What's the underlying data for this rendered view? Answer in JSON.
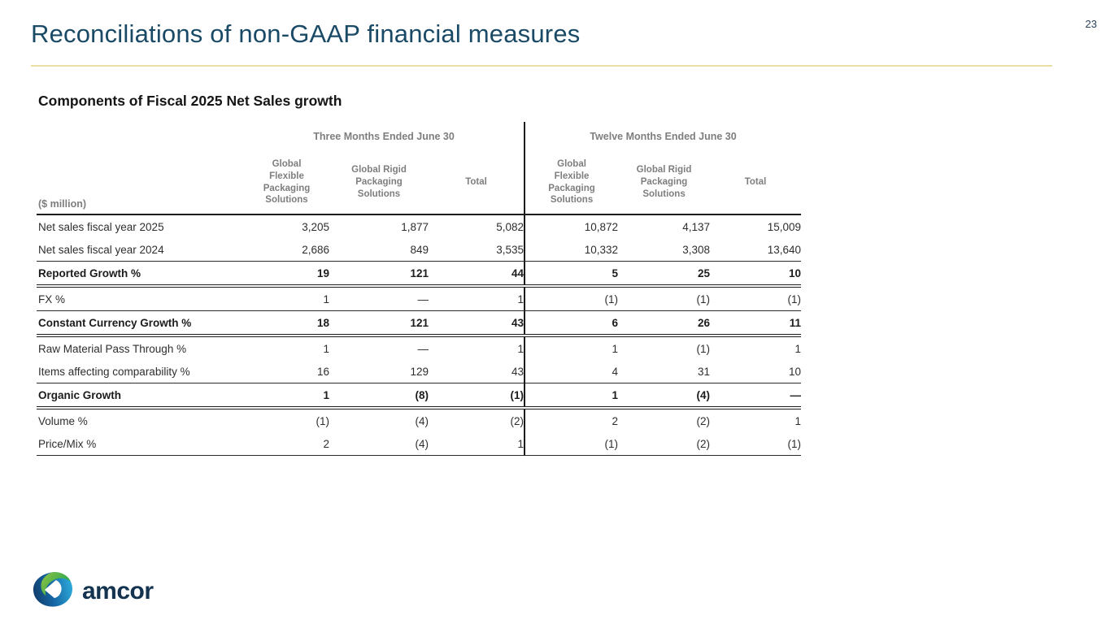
{
  "page": {
    "title": "Reconciliations of non-GAAP financial measures",
    "page_number": "23"
  },
  "table": {
    "title": "Components of Fiscal 2025 Net Sales growth",
    "unit_label": "($ million)",
    "group_headers": [
      "Three Months Ended June 30",
      "Twelve Months Ended June 30"
    ],
    "column_headers": [
      "Global Flexible Packaging Solutions",
      "Global Rigid Packaging Solutions",
      "Total",
      "Global Flexible Packaging Solutions",
      "Global Rigid Packaging Solutions",
      "Total"
    ],
    "rows": [
      {
        "label": "Net sales fiscal year 2025",
        "bold": false,
        "border": "none",
        "values": [
          "3,205",
          "1,877",
          "5,082",
          "10,872",
          "4,137",
          "15,009"
        ]
      },
      {
        "label": "Net sales fiscal year 2024",
        "bold": false,
        "border": "thin",
        "values": [
          "2,686",
          "849",
          "3,535",
          "10,332",
          "3,308",
          "13,640"
        ]
      },
      {
        "label": "Reported Growth %",
        "bold": true,
        "border": "double",
        "values": [
          "19",
          "121",
          "44",
          "5",
          "25",
          "10"
        ]
      },
      {
        "label": "FX %",
        "bold": false,
        "border": "thin",
        "values": [
          "1",
          "—",
          "1",
          "(1)",
          "(1)",
          "(1)"
        ]
      },
      {
        "label": "Constant Currency Growth %",
        "bold": true,
        "border": "double",
        "values": [
          "18",
          "121",
          "43",
          "6",
          "26",
          "11"
        ]
      },
      {
        "label": "Raw Material Pass Through %",
        "bold": false,
        "border": "none",
        "values": [
          "1",
          "—",
          "1",
          "1",
          "(1)",
          "1"
        ]
      },
      {
        "label": "Items affecting comparability %",
        "bold": false,
        "border": "thin",
        "values": [
          "16",
          "129",
          "43",
          "4",
          "31",
          "10"
        ]
      },
      {
        "label": "Organic Growth",
        "bold": true,
        "border": "double",
        "values": [
          "1",
          "(8)",
          "(1)",
          "1",
          "(4)",
          "—"
        ]
      },
      {
        "label": "Volume %",
        "bold": false,
        "border": "none",
        "values": [
          "(1)",
          "(4)",
          "(2)",
          "2",
          "(2)",
          "1"
        ]
      },
      {
        "label": "Price/Mix %",
        "bold": false,
        "border": "thin",
        "values": [
          "2",
          "(4)",
          "1",
          "(1)",
          "(2)",
          "(1)"
        ]
      }
    ]
  },
  "footer": {
    "logo_text": "amcor"
  },
  "colors": {
    "title_navy": "#1a4a66",
    "divider_gold": "#eadfa3",
    "header_gray": "#7e7e7e",
    "table_line": "#1c1c1c",
    "logo_dark_blue": "#123e6b",
    "logo_light_blue": "#2da9d8",
    "logo_green": "#8ec640",
    "wordmark_navy": "#13334f"
  }
}
